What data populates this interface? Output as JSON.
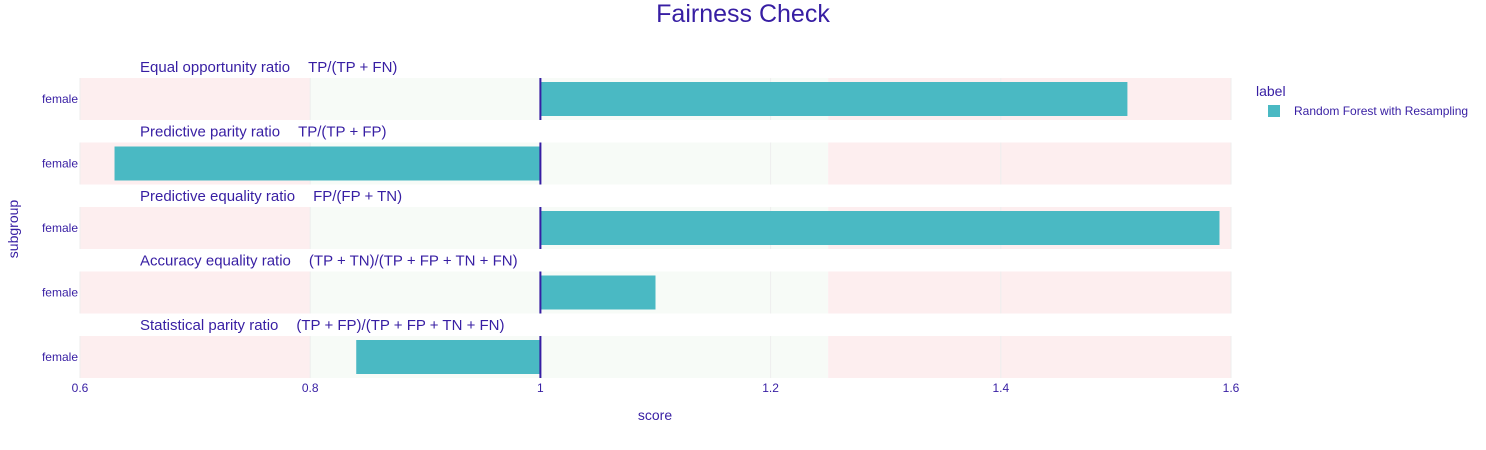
{
  "chart_data": {
    "type": "bar",
    "orientation": "horizontal",
    "title": "Fairness Check",
    "xlabel": "score",
    "ylabel": "subgroup",
    "xlim": [
      0.6,
      1.6
    ],
    "x_ticks": [
      0.6,
      0.8,
      1,
      1.2,
      1.4,
      1.6
    ],
    "x_tick_labels": [
      "0.6",
      "0.8",
      "1",
      "1.2",
      "1.4",
      "1.6"
    ],
    "baseline": 1,
    "fair_range": [
      0.8,
      1.25
    ],
    "grid": true,
    "legend": {
      "title": "label",
      "placement": "top-right",
      "entries": [
        {
          "name": "Random Forest with Resampling",
          "color": "#4ab9c3"
        }
      ]
    },
    "panels": [
      {
        "metric": "Equal opportunity ratio",
        "formula": "TP/(TP + FN)",
        "category": "female",
        "value": 1.51
      },
      {
        "metric": "Predictive parity ratio",
        "formula": "TP/(TP + FP)",
        "category": "female",
        "value": 0.63
      },
      {
        "metric": "Predictive equality ratio",
        "formula": "FP/(FP + TN)",
        "category": "female",
        "value": 1.59
      },
      {
        "metric": "Accuracy equality ratio",
        "formula": "(TP + TN)/(TP + FP + TN + FN)",
        "category": "female",
        "value": 1.1
      },
      {
        "metric": "Statistical parity ratio",
        "formula": "(TP + FP)/(TP + FP + TN + FN)",
        "category": "female",
        "value": 0.84
      }
    ],
    "colors": {
      "bar": "#4ab9c3",
      "text": "#371ea3",
      "baseline": "#371ea3",
      "unfair_zone": "#fdeeef",
      "fair_zone": "#f7fbf7"
    }
  }
}
